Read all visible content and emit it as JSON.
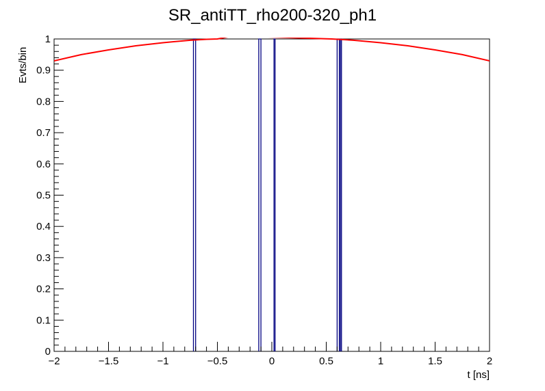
{
  "chart_data": {
    "type": "line",
    "title": "SR_antiTT_rho200-320_ph1",
    "xlabel": "t [ns]",
    "ylabel": "Evts/bin",
    "xlim": [
      -2,
      2
    ],
    "ylim": [
      0,
      1
    ],
    "x_ticks": [
      -2,
      -1.5,
      -1,
      -0.5,
      0,
      0.5,
      1,
      1.5,
      2
    ],
    "x_tick_labels": [
      "−2",
      "−1.5",
      "−1",
      "−0.5",
      "0",
      "0.5",
      "1",
      "1.5",
      "2"
    ],
    "y_ticks": [
      0,
      0.1,
      0.2,
      0.3,
      0.4,
      0.5,
      0.6,
      0.7,
      0.8,
      0.9,
      1
    ],
    "y_tick_labels": [
      "0",
      "0.1",
      "0.2",
      "0.3",
      "0.4",
      "0.5",
      "0.6",
      "0.7",
      "0.8",
      "0.9",
      "1"
    ],
    "grid": false,
    "series": [
      {
        "kind": "histogram",
        "color": "#000080",
        "bins": [
          {
            "x0": -0.72,
            "x1": -0.7,
            "value": 1
          },
          {
            "x0": -0.12,
            "x1": -0.1,
            "value": 1
          },
          {
            "x0": 0.02,
            "x1": 0.03,
            "value": 1
          },
          {
            "x0": 0.6,
            "x1": 0.62,
            "value": 1
          },
          {
            "x0": 0.63,
            "x1": 0.64,
            "value": 1
          }
        ]
      },
      {
        "kind": "curve",
        "color": "#ff0000",
        "x": [
          -2.0,
          -1.75,
          -1.5,
          -1.25,
          -1.0,
          -0.75,
          -0.6,
          -0.5,
          -0.35,
          0.55,
          0.65,
          0.75,
          1.0,
          1.25,
          1.5,
          1.75,
          2.0
        ],
        "y": [
          0.93,
          0.95,
          0.965,
          0.978,
          0.988,
          0.996,
          0.999,
          1.0,
          1.01,
          1.0,
          0.998,
          0.996,
          0.988,
          0.978,
          0.965,
          0.95,
          0.93
        ]
      }
    ]
  }
}
